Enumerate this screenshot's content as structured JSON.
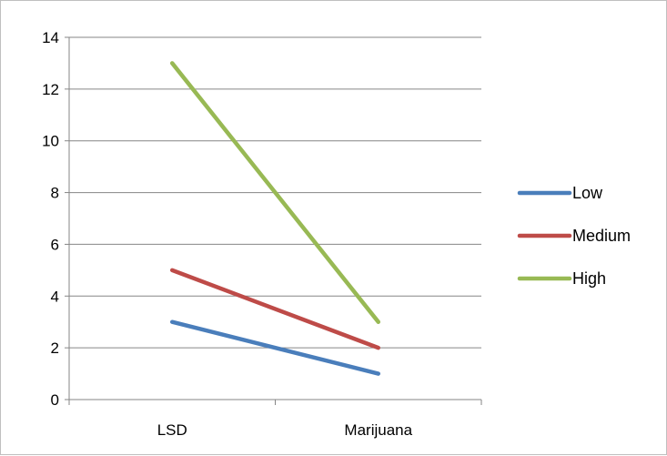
{
  "chart_data": {
    "type": "line",
    "title": "",
    "xlabel": "",
    "ylabel": "",
    "categories": [
      "LSD",
      "Marijuana"
    ],
    "ylim": [
      0,
      14
    ],
    "yticks": [
      "0",
      "2",
      "4",
      "6",
      "8",
      "10",
      "12",
      "14"
    ],
    "grid": true,
    "legend_position": "right",
    "series": [
      {
        "name": "Low",
        "values": [
          3,
          1
        ],
        "color": "#4a7ebb"
      },
      {
        "name": "Medium",
        "values": [
          5,
          2
        ],
        "color": "#be4b48"
      },
      {
        "name": "High",
        "values": [
          13,
          3
        ],
        "color": "#98b954"
      }
    ]
  }
}
